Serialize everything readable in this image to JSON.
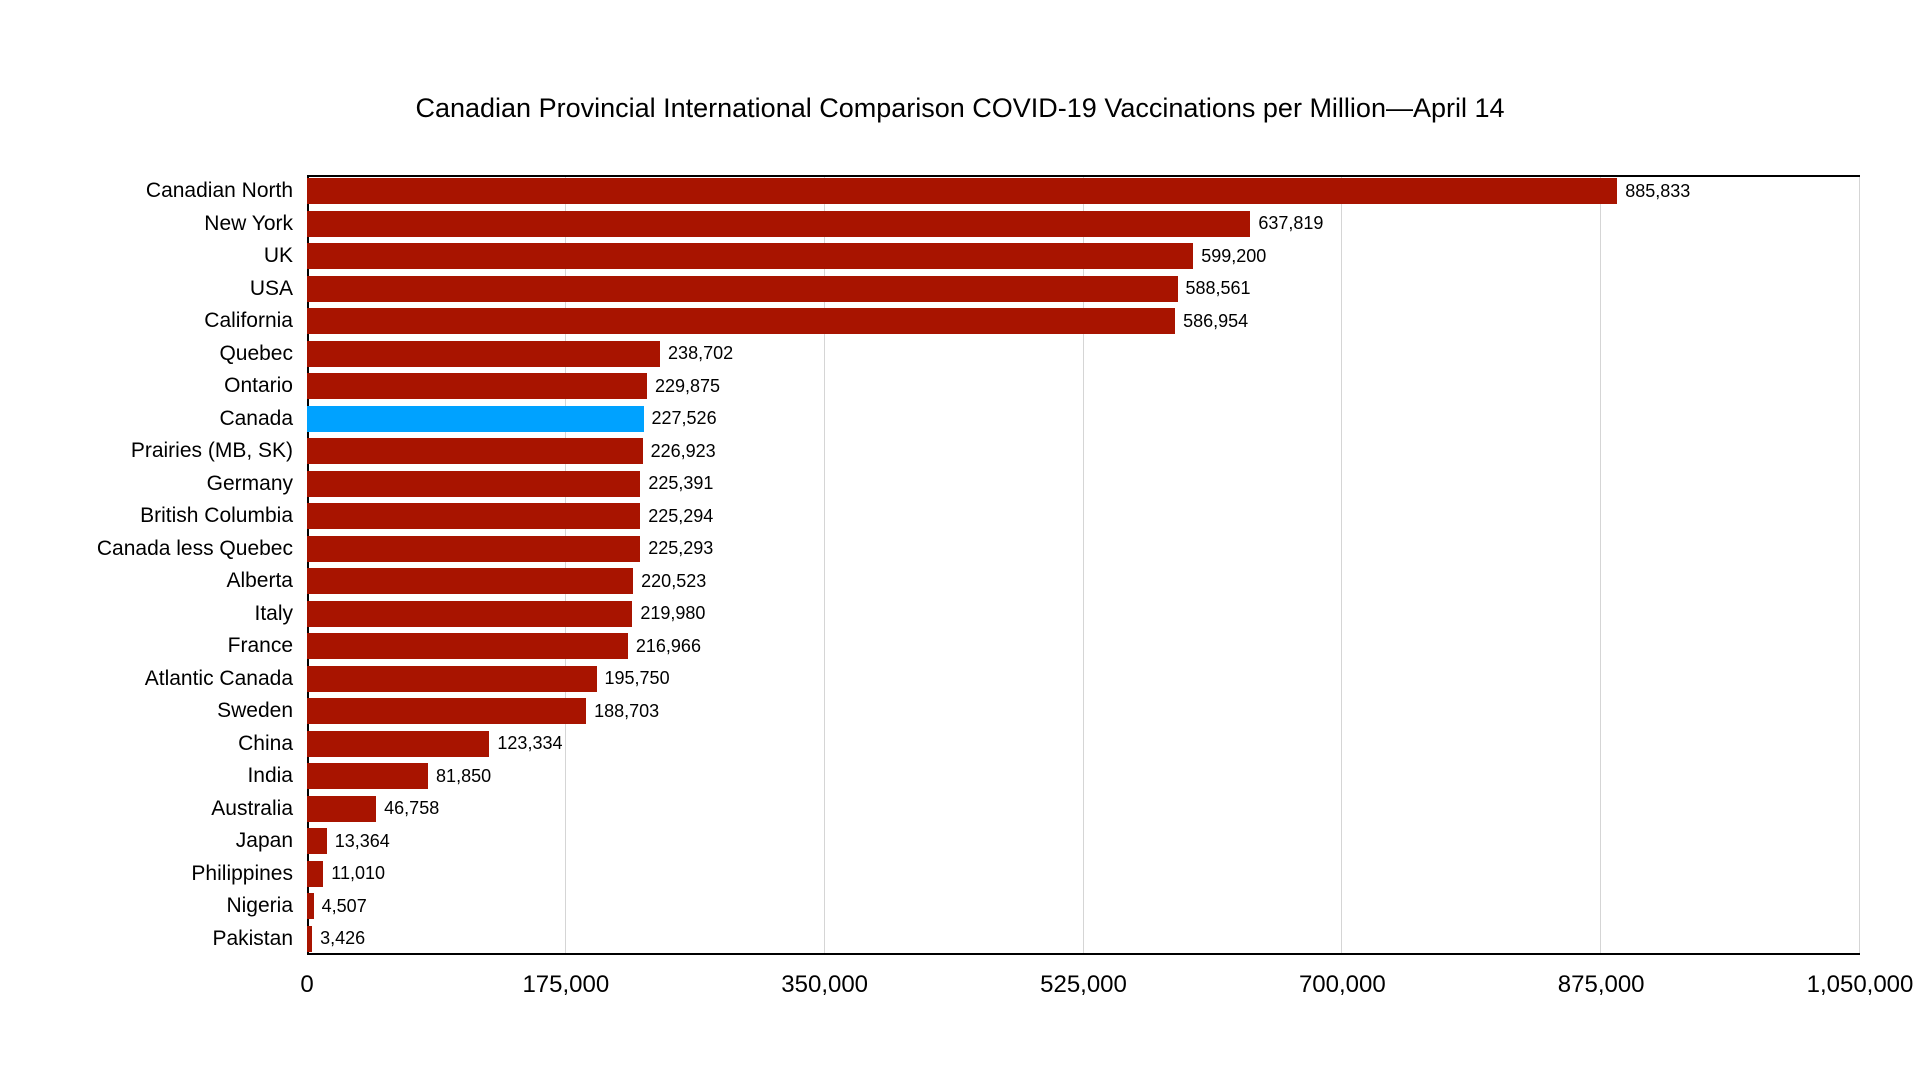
{
  "page": {
    "background": "#FFFFFF"
  },
  "chart_data": {
    "type": "bar",
    "orientation": "horizontal",
    "title": "Canadian Provincial International Comparison COVID-19 Vaccinations per Million—April 14",
    "categories": [
      "Canadian North",
      "New York",
      "UK",
      "USA",
      "California",
      "Quebec",
      "Ontario",
      "Canada",
      "Prairies (MB, SK)",
      "Germany",
      "British Columbia",
      "Canada less Quebec",
      "Alberta",
      "Italy",
      "France",
      "Atlantic Canada",
      "Sweden",
      "China",
      "India",
      "Australia",
      "Japan",
      "Philippines",
      "Nigeria",
      "Pakistan"
    ],
    "values": [
      885833,
      637819,
      599200,
      588561,
      586954,
      238702,
      229875,
      227526,
      226923,
      225391,
      225294,
      225293,
      220523,
      219980,
      216966,
      195750,
      188703,
      123334,
      81850,
      46758,
      13364,
      11010,
      4507,
      3426
    ],
    "value_labels": [
      "885,833",
      "637,819",
      "599,200",
      "588,561",
      "586,954",
      "238,702",
      "229,875",
      "227,526",
      "226,923",
      "225,391",
      "225,294",
      "225,293",
      "220,523",
      "219,980",
      "216,966",
      "195,750",
      "188,703",
      "123,334",
      "81,850",
      "46,758",
      "13,364",
      "11,010",
      "4,507",
      "3,426"
    ],
    "highlight_category": "Canada",
    "colors": {
      "bar": "#A81400",
      "highlight": "#00A2FF",
      "gridline": "#D5D5D5",
      "axis": "#000000",
      "text": "#000000"
    },
    "xlabel": "",
    "ylabel": "",
    "xlim": [
      0,
      1050000
    ],
    "x_ticks": [
      {
        "value": 0,
        "label": "0"
      },
      {
        "value": 175000,
        "label": "175,000"
      },
      {
        "value": 350000,
        "label": "350,000"
      },
      {
        "value": 525000,
        "label": "525,000"
      },
      {
        "value": 700000,
        "label": "700,000"
      },
      {
        "value": 875000,
        "label": "875,000"
      },
      {
        "value": 1050000,
        "label": "1,050,000"
      }
    ],
    "grid": true,
    "legend": false
  }
}
